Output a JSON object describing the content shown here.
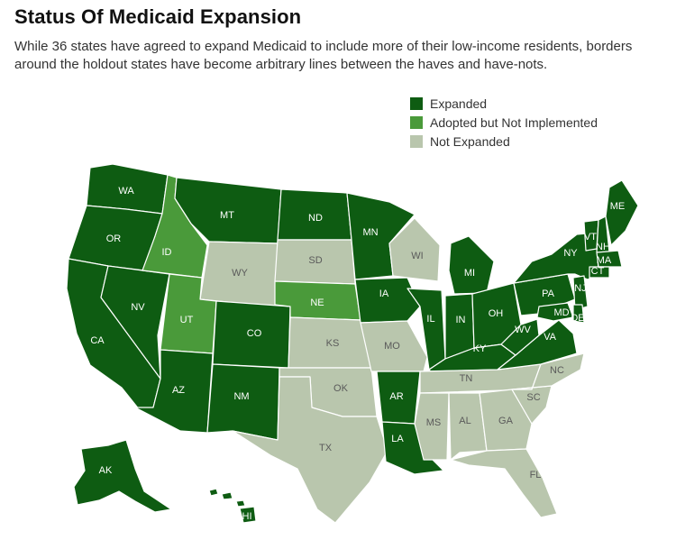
{
  "title": "Status Of Medicaid Expansion",
  "subtitle": "While 36 states have agreed to expand Medicaid to include more of their low-income residents, borders around the holdout states have become arbitrary lines between the haves and have-nots.",
  "colors": {
    "expanded": "#0e5c12",
    "adopted": "#4a9a3a",
    "not_expanded": "#b9c6ad"
  },
  "legend": [
    {
      "key": "expanded",
      "label": "Expanded"
    },
    {
      "key": "adopted",
      "label": "Adopted but Not Implemented"
    },
    {
      "key": "not_expanded",
      "label": "Not Expanded"
    }
  ],
  "states": [
    {
      "abbr": "WA",
      "status": "expanded"
    },
    {
      "abbr": "OR",
      "status": "expanded"
    },
    {
      "abbr": "CA",
      "status": "expanded"
    },
    {
      "abbr": "NV",
      "status": "expanded"
    },
    {
      "abbr": "ID",
      "status": "adopted"
    },
    {
      "abbr": "MT",
      "status": "expanded"
    },
    {
      "abbr": "WY",
      "status": "not_expanded"
    },
    {
      "abbr": "UT",
      "status": "adopted"
    },
    {
      "abbr": "AZ",
      "status": "expanded"
    },
    {
      "abbr": "CO",
      "status": "expanded"
    },
    {
      "abbr": "NM",
      "status": "expanded"
    },
    {
      "abbr": "ND",
      "status": "expanded"
    },
    {
      "abbr": "SD",
      "status": "not_expanded"
    },
    {
      "abbr": "NE",
      "status": "adopted"
    },
    {
      "abbr": "KS",
      "status": "not_expanded"
    },
    {
      "abbr": "OK",
      "status": "not_expanded"
    },
    {
      "abbr": "TX",
      "status": "not_expanded"
    },
    {
      "abbr": "MN",
      "status": "expanded"
    },
    {
      "abbr": "IA",
      "status": "expanded"
    },
    {
      "abbr": "MO",
      "status": "not_expanded"
    },
    {
      "abbr": "AR",
      "status": "expanded"
    },
    {
      "abbr": "LA",
      "status": "expanded"
    },
    {
      "abbr": "WI",
      "status": "not_expanded"
    },
    {
      "abbr": "IL",
      "status": "expanded"
    },
    {
      "abbr": "MI",
      "status": "expanded"
    },
    {
      "abbr": "IN",
      "status": "expanded"
    },
    {
      "abbr": "OH",
      "status": "expanded"
    },
    {
      "abbr": "KY",
      "status": "expanded"
    },
    {
      "abbr": "TN",
      "status": "not_expanded"
    },
    {
      "abbr": "MS",
      "status": "not_expanded"
    },
    {
      "abbr": "AL",
      "status": "not_expanded"
    },
    {
      "abbr": "GA",
      "status": "not_expanded"
    },
    {
      "abbr": "FL",
      "status": "not_expanded"
    },
    {
      "abbr": "SC",
      "status": "not_expanded"
    },
    {
      "abbr": "NC",
      "status": "not_expanded"
    },
    {
      "abbr": "VA",
      "status": "expanded"
    },
    {
      "abbr": "WV",
      "status": "expanded"
    },
    {
      "abbr": "PA",
      "status": "expanded"
    },
    {
      "abbr": "NY",
      "status": "expanded"
    },
    {
      "abbr": "VT",
      "status": "expanded"
    },
    {
      "abbr": "NH",
      "status": "expanded"
    },
    {
      "abbr": "ME",
      "status": "expanded"
    },
    {
      "abbr": "MA",
      "status": "expanded"
    },
    {
      "abbr": "CT",
      "status": "expanded"
    },
    {
      "abbr": "NJ",
      "status": "expanded"
    },
    {
      "abbr": "MD",
      "status": "expanded"
    },
    {
      "abbr": "DE",
      "status": "expanded"
    },
    {
      "abbr": "AK",
      "status": "expanded"
    },
    {
      "abbr": "HI",
      "status": "expanded"
    }
  ]
}
